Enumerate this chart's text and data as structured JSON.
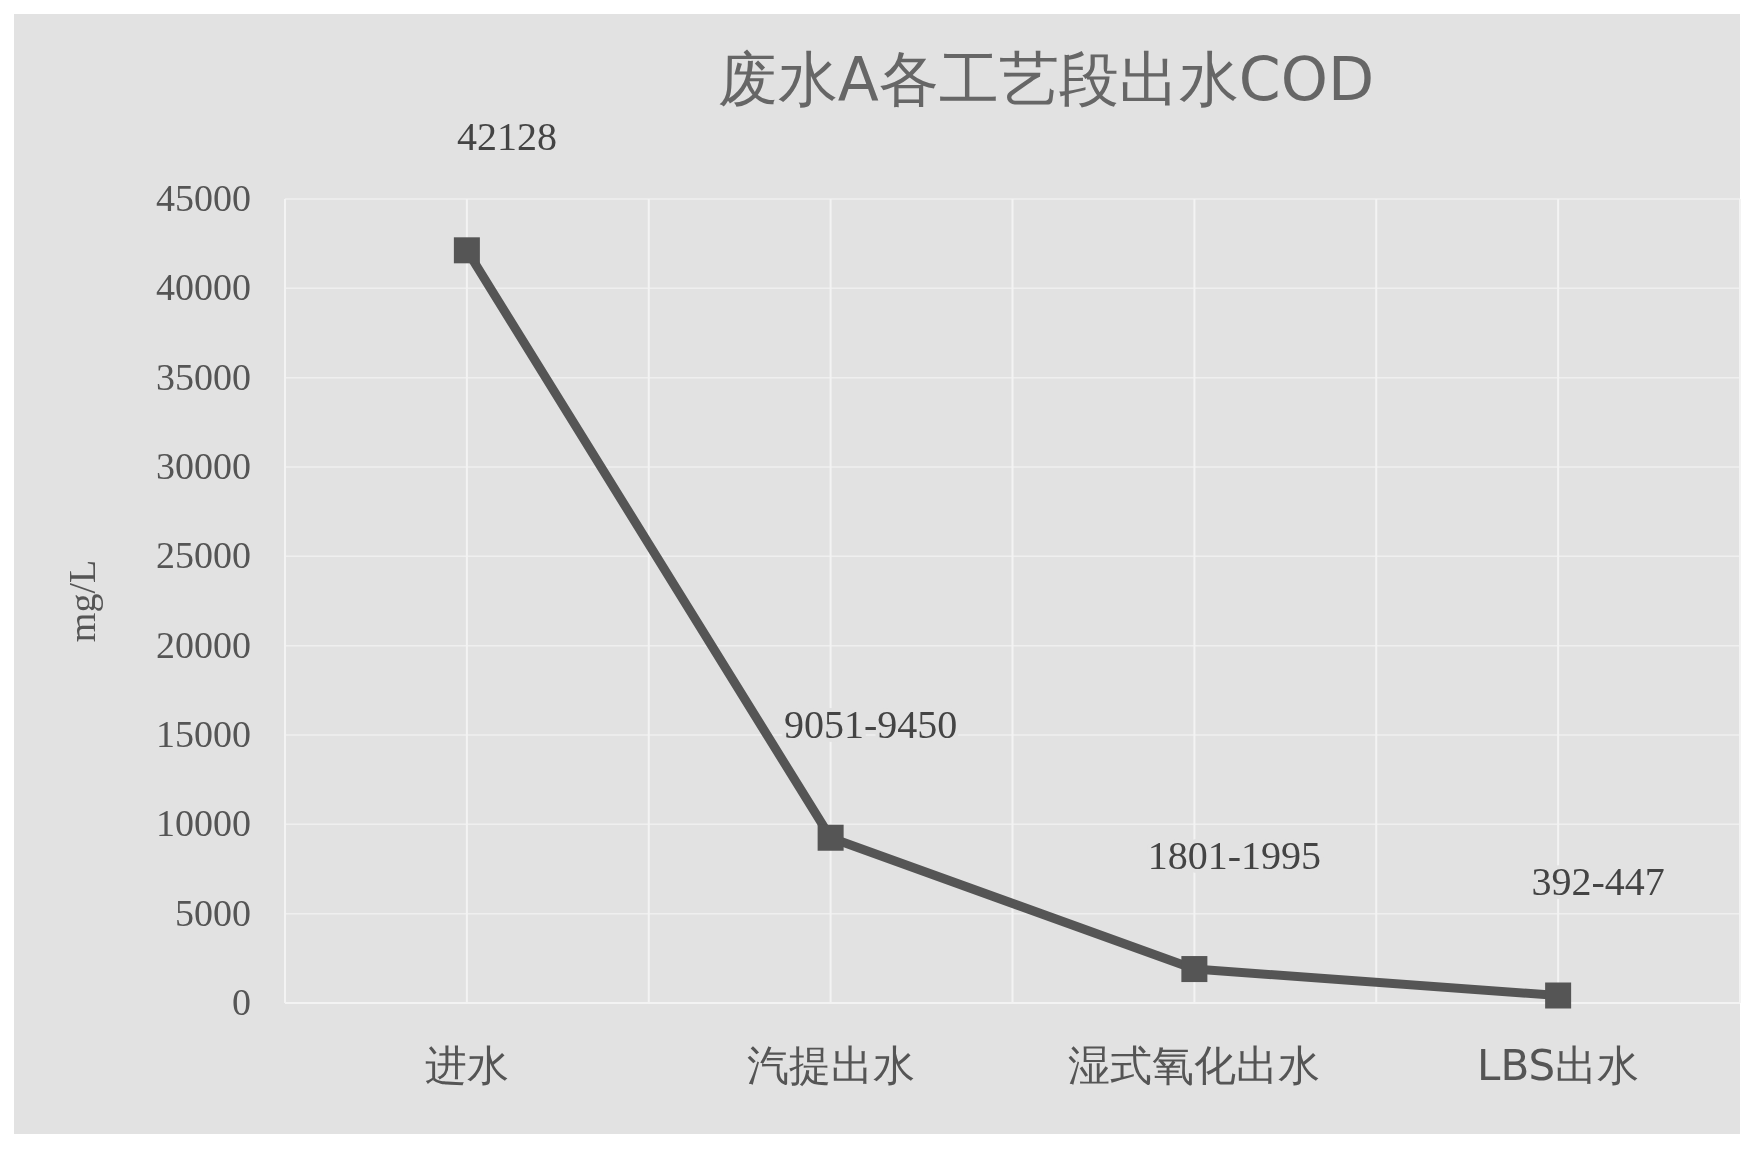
{
  "chart_data": {
    "type": "line",
    "title": "废水A各工艺段出水COD",
    "ylabel": "mg/L",
    "categories": [
      "进水",
      "汽提出水",
      "湿式氧化出水",
      "LBS出水"
    ],
    "series": [
      {
        "color": "#555555",
        "values": [
          42128,
          9250,
          1900,
          420
        ],
        "value_labels": [
          "42128",
          "9051-9450",
          "1801-1995",
          "392-447"
        ]
      }
    ],
    "ylim": [
      0,
      45000
    ],
    "yticks": [
      0,
      5000,
      10000,
      15000,
      20000,
      25000,
      30000,
      35000,
      40000,
      45000
    ],
    "grid": true,
    "marker": "square",
    "line_style": "solid"
  }
}
